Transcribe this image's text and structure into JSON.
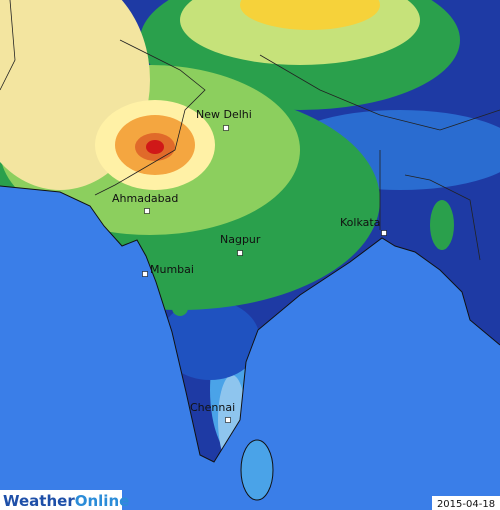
{
  "cities": [
    "New Delhi",
    "Ahmadabad",
    "Nagpur",
    "Kolkata",
    "Mumbai",
    "Chennai"
  ],
  "logo": [
    "Weather",
    "Online"
  ],
  "date": "2015-04-18"
}
